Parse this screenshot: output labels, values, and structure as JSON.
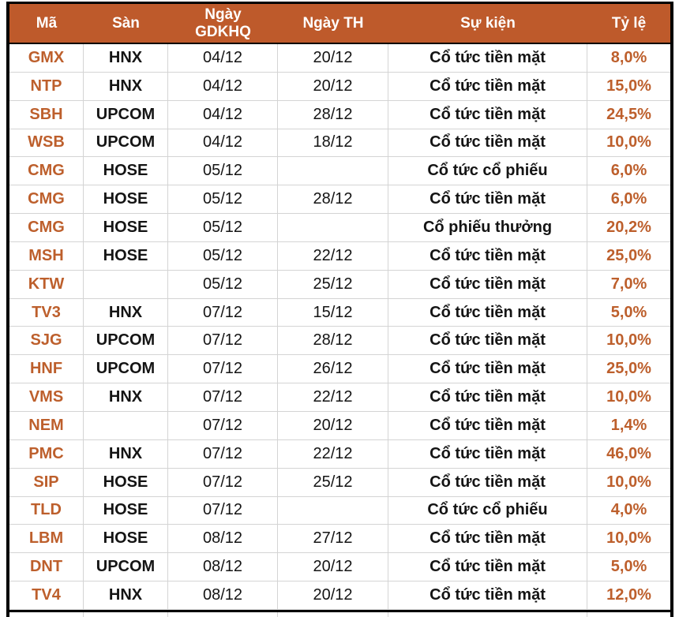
{
  "colors": {
    "header_bg": "#BE5A2B",
    "accent_text": "#BD5F2C",
    "grid_line": "#D4D4D4",
    "border_black": "#000000"
  },
  "chart_data": {
    "type": "table",
    "title": "",
    "columns": [
      "Mã",
      "Sàn",
      "Ngày GDKHQ",
      "Ngày TH",
      "Sự kiện",
      "Tỷ lệ"
    ],
    "rows": [
      [
        "GMX",
        "HNX",
        "04/12",
        "20/12",
        "Cổ tức tiền mặt",
        "8,0%"
      ],
      [
        "NTP",
        "HNX",
        "04/12",
        "20/12",
        "Cổ tức tiền mặt",
        "15,0%"
      ],
      [
        "SBH",
        "UPCOM",
        "04/12",
        "28/12",
        "Cổ tức tiền mặt",
        "24,5%"
      ],
      [
        "WSB",
        "UPCOM",
        "04/12",
        "18/12",
        "Cổ tức tiền mặt",
        "10,0%"
      ],
      [
        "CMG",
        "HOSE",
        "05/12",
        "",
        "Cổ tức cổ phiếu",
        "6,0%"
      ],
      [
        "CMG",
        "HOSE",
        "05/12",
        "28/12",
        "Cổ tức tiền mặt",
        "6,0%"
      ],
      [
        "CMG",
        "HOSE",
        "05/12",
        "",
        "Cổ phiếu thưởng",
        "20,2%"
      ],
      [
        "MSH",
        "HOSE",
        "05/12",
        "22/12",
        "Cổ tức tiền mặt",
        "25,0%"
      ],
      [
        "KTW",
        "",
        "05/12",
        "25/12",
        "Cổ tức tiền mặt",
        "7,0%"
      ],
      [
        "TV3",
        "HNX",
        "07/12",
        "15/12",
        "Cổ tức tiền mặt",
        "5,0%"
      ],
      [
        "SJG",
        "UPCOM",
        "07/12",
        "28/12",
        "Cổ tức tiền mặt",
        "10,0%"
      ],
      [
        "HNF",
        "UPCOM",
        "07/12",
        "26/12",
        "Cổ tức tiền mặt",
        "25,0%"
      ],
      [
        "VMS",
        "HNX",
        "07/12",
        "22/12",
        "Cổ tức tiền mặt",
        "10,0%"
      ],
      [
        "NEM",
        "",
        "07/12",
        "20/12",
        "Cổ tức tiền mặt",
        "1,4%"
      ],
      [
        "PMC",
        "HNX",
        "07/12",
        "22/12",
        "Cổ tức tiền mặt",
        "46,0%"
      ],
      [
        "SIP",
        "HOSE",
        "07/12",
        "25/12",
        "Cổ tức tiền mặt",
        "10,0%"
      ],
      [
        "TLD",
        "HOSE",
        "07/12",
        "",
        "Cổ tức cổ phiếu",
        "4,0%"
      ],
      [
        "LBM",
        "HOSE",
        "08/12",
        "27/12",
        "Cổ tức tiền mặt",
        "10,0%"
      ],
      [
        "DNT",
        "UPCOM",
        "08/12",
        "20/12",
        "Cổ tức tiền mặt",
        "5,0%"
      ],
      [
        "TV4",
        "HNX",
        "08/12",
        "20/12",
        "Cổ tức tiền mặt",
        "12,0%"
      ]
    ]
  }
}
